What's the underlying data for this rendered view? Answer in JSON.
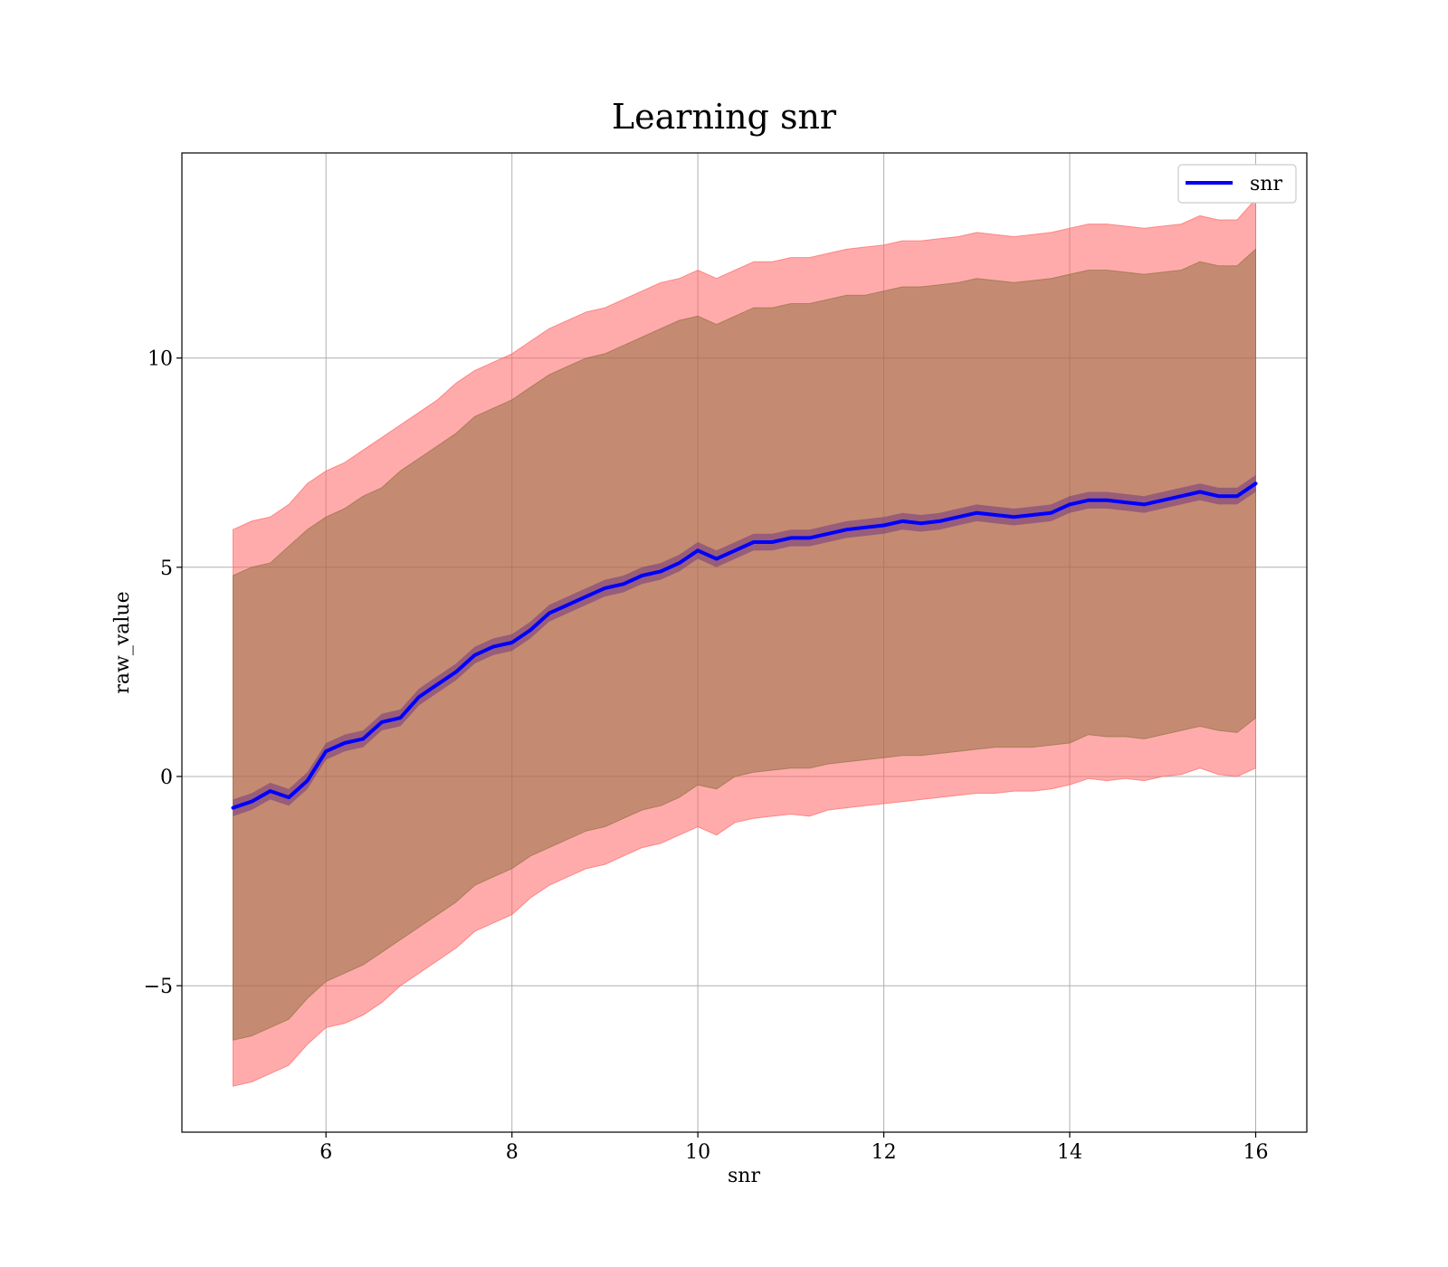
{
  "chart_data": {
    "type": "line",
    "title": "Learning snr",
    "xlabel": "snr",
    "ylabel": "raw_value",
    "xlim": [
      4.45,
      16.55
    ],
    "ylim": [
      -8.5,
      14.9
    ],
    "xticks": [
      6,
      8,
      10,
      12,
      14,
      16
    ],
    "yticks": [
      -5,
      0,
      5,
      10
    ],
    "xtick_labels": [
      "6",
      "8",
      "10",
      "12",
      "14",
      "16"
    ],
    "ytick_labels": [
      "−5",
      "0",
      "5",
      "10"
    ],
    "grid": true,
    "legend_position": "top-right",
    "colors": {
      "line": "#0000ff",
      "outer_band": "#ff6666",
      "middle_band": "#8b6b3a",
      "inner_band": "#6b2f80"
    },
    "series": [
      {
        "name": "snr",
        "x": [
          5.0,
          5.2,
          5.4,
          5.6,
          5.8,
          6.0,
          6.2,
          6.4,
          6.6,
          6.8,
          7.0,
          7.2,
          7.4,
          7.6,
          7.8,
          8.0,
          8.2,
          8.4,
          8.6,
          8.8,
          9.0,
          9.2,
          9.4,
          9.6,
          9.8,
          10.0,
          10.2,
          10.4,
          10.6,
          10.8,
          11.0,
          11.2,
          11.4,
          11.6,
          11.8,
          12.0,
          12.2,
          12.4,
          12.6,
          12.8,
          13.0,
          13.2,
          13.4,
          13.6,
          13.8,
          14.0,
          14.2,
          14.4,
          14.6,
          14.8,
          15.0,
          15.2,
          15.4,
          15.6,
          15.8,
          16.0
        ],
        "y": [
          -0.75,
          -0.6,
          -0.35,
          -0.5,
          -0.1,
          0.6,
          0.8,
          0.9,
          1.3,
          1.4,
          1.9,
          2.2,
          2.5,
          2.9,
          3.1,
          3.2,
          3.5,
          3.9,
          4.1,
          4.3,
          4.5,
          4.6,
          4.8,
          4.9,
          5.1,
          5.4,
          5.2,
          5.4,
          5.6,
          5.6,
          5.7,
          5.7,
          5.8,
          5.9,
          5.95,
          6.0,
          6.1,
          6.05,
          6.1,
          6.2,
          6.3,
          6.25,
          6.2,
          6.25,
          6.3,
          6.5,
          6.6,
          6.6,
          6.55,
          6.5,
          6.6,
          6.7,
          6.8,
          6.7,
          6.7,
          7.0
        ],
        "inner_lower": [
          -0.95,
          -0.8,
          -0.55,
          -0.7,
          -0.3,
          0.4,
          0.6,
          0.7,
          1.1,
          1.2,
          1.7,
          2.0,
          2.3,
          2.7,
          2.9,
          3.0,
          3.3,
          3.7,
          3.9,
          4.1,
          4.3,
          4.4,
          4.6,
          4.7,
          4.9,
          5.2,
          5.0,
          5.2,
          5.4,
          5.4,
          5.5,
          5.5,
          5.6,
          5.7,
          5.75,
          5.8,
          5.9,
          5.85,
          5.9,
          6.0,
          6.1,
          6.05,
          6.0,
          6.05,
          6.1,
          6.3,
          6.4,
          6.4,
          6.35,
          6.3,
          6.4,
          6.5,
          6.6,
          6.5,
          6.5,
          6.8
        ],
        "inner_upper": [
          -0.55,
          -0.4,
          -0.15,
          -0.3,
          0.1,
          0.8,
          1.0,
          1.1,
          1.5,
          1.6,
          2.1,
          2.4,
          2.7,
          3.1,
          3.3,
          3.4,
          3.7,
          4.1,
          4.3,
          4.5,
          4.7,
          4.8,
          5.0,
          5.1,
          5.3,
          5.6,
          5.4,
          5.6,
          5.8,
          5.8,
          5.9,
          5.9,
          6.0,
          6.1,
          6.15,
          6.2,
          6.3,
          6.25,
          6.3,
          6.4,
          6.5,
          6.45,
          6.4,
          6.45,
          6.5,
          6.7,
          6.8,
          6.8,
          6.75,
          6.7,
          6.8,
          6.9,
          7.0,
          6.9,
          6.9,
          7.2
        ],
        "middle_lower": [
          -6.3,
          -6.2,
          -6.0,
          -5.8,
          -5.3,
          -4.9,
          -4.7,
          -4.5,
          -4.2,
          -3.9,
          -3.6,
          -3.3,
          -3.0,
          -2.6,
          -2.4,
          -2.2,
          -1.9,
          -1.7,
          -1.5,
          -1.3,
          -1.2,
          -1.0,
          -0.8,
          -0.7,
          -0.5,
          -0.2,
          -0.3,
          0.0,
          0.1,
          0.15,
          0.2,
          0.2,
          0.3,
          0.35,
          0.4,
          0.45,
          0.5,
          0.5,
          0.55,
          0.6,
          0.65,
          0.7,
          0.7,
          0.7,
          0.75,
          0.8,
          1.0,
          0.95,
          0.95,
          0.9,
          1.0,
          1.1,
          1.2,
          1.1,
          1.05,
          1.4
        ],
        "middle_upper": [
          4.8,
          5.0,
          5.1,
          5.5,
          5.9,
          6.2,
          6.4,
          6.7,
          6.9,
          7.3,
          7.6,
          7.9,
          8.2,
          8.6,
          8.8,
          9.0,
          9.3,
          9.6,
          9.8,
          10.0,
          10.1,
          10.3,
          10.5,
          10.7,
          10.9,
          11.0,
          10.8,
          11.0,
          11.2,
          11.2,
          11.3,
          11.3,
          11.4,
          11.5,
          11.5,
          11.6,
          11.7,
          11.7,
          11.75,
          11.8,
          11.9,
          11.85,
          11.8,
          11.85,
          11.9,
          12.0,
          12.1,
          12.1,
          12.05,
          12.0,
          12.05,
          12.1,
          12.3,
          12.2,
          12.2,
          12.6
        ],
        "outer_lower": [
          -7.4,
          -7.3,
          -7.1,
          -6.9,
          -6.4,
          -6.0,
          -5.9,
          -5.7,
          -5.4,
          -5.0,
          -4.7,
          -4.4,
          -4.1,
          -3.7,
          -3.5,
          -3.3,
          -2.9,
          -2.6,
          -2.4,
          -2.2,
          -2.1,
          -1.9,
          -1.7,
          -1.6,
          -1.4,
          -1.2,
          -1.4,
          -1.1,
          -1.0,
          -0.95,
          -0.9,
          -0.95,
          -0.8,
          -0.75,
          -0.7,
          -0.65,
          -0.6,
          -0.55,
          -0.5,
          -0.45,
          -0.4,
          -0.4,
          -0.35,
          -0.35,
          -0.3,
          -0.2,
          -0.05,
          -0.1,
          -0.05,
          -0.1,
          0.0,
          0.05,
          0.2,
          0.05,
          0.0,
          0.2
        ],
        "outer_upper": [
          5.9,
          6.1,
          6.2,
          6.5,
          7.0,
          7.3,
          7.5,
          7.8,
          8.1,
          8.4,
          8.7,
          9.0,
          9.4,
          9.7,
          9.9,
          10.1,
          10.4,
          10.7,
          10.9,
          11.1,
          11.2,
          11.4,
          11.6,
          11.8,
          11.9,
          12.1,
          11.9,
          12.1,
          12.3,
          12.3,
          12.4,
          12.4,
          12.5,
          12.6,
          12.65,
          12.7,
          12.8,
          12.8,
          12.85,
          12.9,
          13.0,
          12.95,
          12.9,
          12.95,
          13.0,
          13.1,
          13.2,
          13.2,
          13.15,
          13.1,
          13.15,
          13.2,
          13.4,
          13.3,
          13.3,
          13.8
        ]
      }
    ]
  }
}
